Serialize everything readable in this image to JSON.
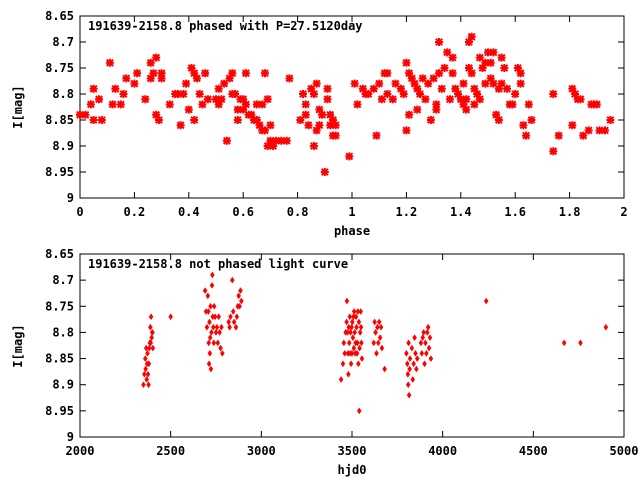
{
  "chart_data": [
    {
      "type": "scatter",
      "title": "191639-2158.8 phased with P=27.5120day",
      "xlabel": "phase",
      "ylabel": "I[mag]",
      "xlim": [
        0,
        2
      ],
      "ylim": [
        8.65,
        9.0
      ],
      "y_inverted": true,
      "xticks": [
        "0",
        "0.2",
        "0.4",
        "0.6",
        "0.8",
        "1",
        "1.2",
        "1.4",
        "1.6",
        "1.8",
        "2"
      ],
      "yticks": [
        "8.65",
        "8.7",
        "8.75",
        "8.8",
        "8.85",
        "8.9",
        "8.95",
        "9"
      ],
      "marker_color": "#ff0000",
      "marker": "star",
      "points": [
        [
          0.0,
          8.84
        ],
        [
          0.02,
          8.84
        ],
        [
          0.04,
          8.82
        ],
        [
          0.05,
          8.79
        ],
        [
          0.05,
          8.85
        ],
        [
          0.07,
          8.81
        ],
        [
          0.08,
          8.85
        ],
        [
          0.11,
          8.74
        ],
        [
          0.12,
          8.82
        ],
        [
          0.13,
          8.79
        ],
        [
          0.15,
          8.82
        ],
        [
          0.16,
          8.8
        ],
        [
          0.17,
          8.77
        ],
        [
          0.2,
          8.78
        ],
        [
          0.21,
          8.76
        ],
        [
          0.24,
          8.81
        ],
        [
          0.26,
          8.74
        ],
        [
          0.26,
          8.77
        ],
        [
          0.27,
          8.76
        ],
        [
          0.28,
          8.73
        ],
        [
          0.28,
          8.84
        ],
        [
          0.29,
          8.85
        ],
        [
          0.3,
          8.76
        ],
        [
          0.3,
          8.77
        ],
        [
          0.33,
          8.82
        ],
        [
          0.35,
          8.8
        ],
        [
          0.36,
          8.8
        ],
        [
          0.37,
          8.86
        ],
        [
          0.38,
          8.8
        ],
        [
          0.39,
          8.78
        ],
        [
          0.4,
          8.83
        ],
        [
          0.41,
          8.75
        ],
        [
          0.42,
          8.76
        ],
        [
          0.42,
          8.85
        ],
        [
          0.43,
          8.77
        ],
        [
          0.44,
          8.8
        ],
        [
          0.45,
          8.82
        ],
        [
          0.46,
          8.76
        ],
        [
          0.47,
          8.81
        ],
        [
          0.5,
          8.81
        ],
        [
          0.51,
          8.82
        ],
        [
          0.51,
          8.79
        ],
        [
          0.52,
          8.81
        ],
        [
          0.53,
          8.78
        ],
        [
          0.54,
          8.89
        ],
        [
          0.55,
          8.77
        ],
        [
          0.56,
          8.8
        ],
        [
          0.56,
          8.76
        ],
        [
          0.57,
          8.8
        ],
        [
          0.58,
          8.83
        ],
        [
          0.58,
          8.85
        ],
        [
          0.59,
          8.81
        ],
        [
          0.6,
          8.81
        ],
        [
          0.6,
          8.83
        ],
        [
          0.61,
          8.76
        ],
        [
          0.61,
          8.82
        ],
        [
          0.62,
          8.84
        ],
        [
          0.63,
          8.84
        ],
        [
          0.64,
          8.85
        ],
        [
          0.65,
          8.82
        ],
        [
          0.65,
          8.85
        ],
        [
          0.66,
          8.86
        ],
        [
          0.67,
          8.82
        ],
        [
          0.67,
          8.87
        ],
        [
          0.68,
          8.76
        ],
        [
          0.68,
          8.87
        ],
        [
          0.69,
          8.81
        ],
        [
          0.69,
          8.9
        ],
        [
          0.7,
          8.89
        ],
        [
          0.7,
          8.86
        ],
        [
          0.71,
          8.9
        ],
        [
          0.72,
          8.89
        ],
        [
          0.74,
          8.89
        ],
        [
          0.76,
          8.89
        ],
        [
          0.77,
          8.77
        ],
        [
          0.81,
          8.85
        ],
        [
          0.82,
          8.8
        ],
        [
          0.83,
          8.84
        ],
        [
          0.83,
          8.82
        ],
        [
          0.84,
          8.86
        ],
        [
          0.85,
          8.79
        ],
        [
          0.86,
          8.8
        ],
        [
          0.86,
          8.9
        ],
        [
          0.87,
          8.87
        ],
        [
          0.87,
          8.78
        ],
        [
          0.88,
          8.83
        ],
        [
          0.88,
          8.86
        ],
        [
          0.89,
          8.84
        ],
        [
          0.9,
          8.95
        ],
        [
          0.91,
          8.81
        ],
        [
          0.91,
          8.79
        ],
        [
          0.92,
          8.84
        ],
        [
          0.92,
          8.86
        ],
        [
          0.93,
          8.88
        ],
        [
          0.93,
          8.85
        ],
        [
          0.94,
          8.88
        ],
        [
          0.94,
          8.86
        ],
        [
          0.99,
          8.92
        ],
        [
          1.01,
          8.78
        ],
        [
          1.02,
          8.82
        ],
        [
          1.04,
          8.79
        ],
        [
          1.05,
          8.8
        ],
        [
          1.06,
          8.8
        ],
        [
          1.08,
          8.79
        ],
        [
          1.09,
          8.88
        ],
        [
          1.1,
          8.78
        ],
        [
          1.11,
          8.81
        ],
        [
          1.12,
          8.76
        ],
        [
          1.13,
          8.76
        ],
        [
          1.13,
          8.8
        ],
        [
          1.15,
          8.81
        ],
        [
          1.16,
          8.78
        ],
        [
          1.18,
          8.79
        ],
        [
          1.19,
          8.8
        ],
        [
          1.2,
          8.87
        ],
        [
          1.2,
          8.74
        ],
        [
          1.21,
          8.76
        ],
        [
          1.21,
          8.84
        ],
        [
          1.22,
          8.77
        ],
        [
          1.23,
          8.78
        ],
        [
          1.24,
          8.79
        ],
        [
          1.24,
          8.83
        ],
        [
          1.25,
          8.8
        ],
        [
          1.26,
          8.77
        ],
        [
          1.27,
          8.81
        ],
        [
          1.28,
          8.78
        ],
        [
          1.29,
          8.85
        ],
        [
          1.3,
          8.77
        ],
        [
          1.31,
          8.82
        ],
        [
          1.31,
          8.83
        ],
        [
          1.32,
          8.7
        ],
        [
          1.32,
          8.76
        ],
        [
          1.33,
          8.79
        ],
        [
          1.34,
          8.75
        ],
        [
          1.35,
          8.72
        ],
        [
          1.36,
          8.81
        ],
        [
          1.37,
          8.73
        ],
        [
          1.37,
          8.76
        ],
        [
          1.38,
          8.79
        ],
        [
          1.39,
          8.8
        ],
        [
          1.4,
          8.81
        ],
        [
          1.41,
          8.78
        ],
        [
          1.41,
          8.82
        ],
        [
          1.42,
          8.81
        ],
        [
          1.42,
          8.83
        ],
        [
          1.43,
          8.75
        ],
        [
          1.43,
          8.7
        ],
        [
          1.44,
          8.76
        ],
        [
          1.44,
          8.69
        ],
        [
          1.45,
          8.82
        ],
        [
          1.45,
          8.79
        ],
        [
          1.46,
          8.8
        ],
        [
          1.47,
          8.73
        ],
        [
          1.47,
          8.81
        ],
        [
          1.48,
          8.75
        ],
        [
          1.49,
          8.74
        ],
        [
          1.49,
          8.78
        ],
        [
          1.5,
          8.72
        ],
        [
          1.51,
          8.77
        ],
        [
          1.51,
          8.74
        ],
        [
          1.52,
          8.72
        ],
        [
          1.52,
          8.78
        ],
        [
          1.53,
          8.84
        ],
        [
          1.54,
          8.85
        ],
        [
          1.54,
          8.79
        ],
        [
          1.55,
          8.78
        ],
        [
          1.55,
          8.73
        ],
        [
          1.56,
          8.75
        ],
        [
          1.57,
          8.79
        ],
        [
          1.58,
          8.82
        ],
        [
          1.59,
          8.82
        ],
        [
          1.6,
          8.8
        ],
        [
          1.61,
          8.75
        ],
        [
          1.62,
          8.76
        ],
        [
          1.62,
          8.78
        ],
        [
          1.63,
          8.86
        ],
        [
          1.64,
          8.88
        ],
        [
          1.65,
          8.82
        ],
        [
          1.66,
          8.85
        ],
        [
          1.74,
          8.91
        ],
        [
          1.74,
          8.8
        ],
        [
          1.76,
          8.88
        ],
        [
          1.81,
          8.86
        ],
        [
          1.81,
          8.79
        ],
        [
          1.82,
          8.8
        ],
        [
          1.83,
          8.81
        ],
        [
          1.84,
          8.81
        ],
        [
          1.85,
          8.88
        ],
        [
          1.87,
          8.87
        ],
        [
          1.88,
          8.82
        ],
        [
          1.89,
          8.82
        ],
        [
          1.9,
          8.82
        ],
        [
          1.91,
          8.87
        ],
        [
          1.93,
          8.87
        ],
        [
          1.95,
          8.85
        ]
      ]
    },
    {
      "type": "scatter",
      "title": "191639-2158.8 not phased light curve",
      "xlabel": "hjd0",
      "ylabel": "I[mag]",
      "xlim": [
        2000,
        5000
      ],
      "ylim": [
        8.65,
        9.0
      ],
      "y_inverted": true,
      "xticks": [
        "2000",
        "2500",
        "3000",
        "3500",
        "4000",
        "4500",
        "5000"
      ],
      "yticks": [
        "8.65",
        "8.7",
        "8.75",
        "8.8",
        "8.85",
        "8.9",
        "8.95",
        "9"
      ],
      "marker_color": "#ff0000",
      "marker": "diamond",
      "points": [
        [
          2350,
          8.9
        ],
        [
          2355,
          8.88
        ],
        [
          2360,
          8.85
        ],
        [
          2362,
          8.87
        ],
        [
          2365,
          8.83
        ],
        [
          2368,
          8.89
        ],
        [
          2370,
          8.86
        ],
        [
          2372,
          8.84
        ],
        [
          2375,
          8.88
        ],
        [
          2378,
          8.9
        ],
        [
          2380,
          8.86
        ],
        [
          2382,
          8.83
        ],
        [
          2385,
          8.82
        ],
        [
          2388,
          8.79
        ],
        [
          2390,
          8.82
        ],
        [
          2392,
          8.77
        ],
        [
          2395,
          8.81
        ],
        [
          2398,
          8.8
        ],
        [
          2400,
          8.8
        ],
        [
          2402,
          8.83
        ],
        [
          2500,
          8.77
        ],
        [
          2690,
          8.72
        ],
        [
          2695,
          8.76
        ],
        [
          2700,
          8.79
        ],
        [
          2705,
          8.73
        ],
        [
          2708,
          8.76
        ],
        [
          2710,
          8.82
        ],
        [
          2712,
          8.86
        ],
        [
          2714,
          8.78
        ],
        [
          2716,
          8.84
        ],
        [
          2718,
          8.81
        ],
        [
          2720,
          8.75
        ],
        [
          2722,
          8.87
        ],
        [
          2725,
          8.8
        ],
        [
          2728,
          8.71
        ],
        [
          2730,
          8.69
        ],
        [
          2732,
          8.77
        ],
        [
          2735,
          8.79
        ],
        [
          2738,
          8.82
        ],
        [
          2740,
          8.75
        ],
        [
          2745,
          8.77
        ],
        [
          2750,
          8.8
        ],
        [
          2755,
          8.79
        ],
        [
          2760,
          8.82
        ],
        [
          2765,
          8.77
        ],
        [
          2770,
          8.8
        ],
        [
          2775,
          8.83
        ],
        [
          2780,
          8.79
        ],
        [
          2785,
          8.84
        ],
        [
          2820,
          8.78
        ],
        [
          2825,
          8.79
        ],
        [
          2830,
          8.77
        ],
        [
          2840,
          8.7
        ],
        [
          2845,
          8.76
        ],
        [
          2850,
          8.78
        ],
        [
          2860,
          8.79
        ],
        [
          2865,
          8.77
        ],
        [
          2870,
          8.75
        ],
        [
          2875,
          8.73
        ],
        [
          2880,
          8.75
        ],
        [
          2885,
          8.72
        ],
        [
          2890,
          8.74
        ],
        [
          3440,
          8.89
        ],
        [
          3450,
          8.86
        ],
        [
          3455,
          8.82
        ],
        [
          3460,
          8.84
        ],
        [
          3465,
          8.8
        ],
        [
          3470,
          8.78
        ],
        [
          3472,
          8.74
        ],
        [
          3475,
          8.8
        ],
        [
          3478,
          8.84
        ],
        [
          3480,
          8.88
        ],
        [
          3482,
          8.79
        ],
        [
          3485,
          8.82
        ],
        [
          3488,
          8.77
        ],
        [
          3490,
          8.84
        ],
        [
          3492,
          8.8
        ],
        [
          3495,
          8.86
        ],
        [
          3498,
          8.79
        ],
        [
          3500,
          8.84
        ],
        [
          3502,
          8.78
        ],
        [
          3505,
          8.81
        ],
        [
          3508,
          8.77
        ],
        [
          3510,
          8.83
        ],
        [
          3512,
          8.76
        ],
        [
          3515,
          8.8
        ],
        [
          3518,
          8.84
        ],
        [
          3520,
          8.82
        ],
        [
          3522,
          8.77
        ],
        [
          3525,
          8.79
        ],
        [
          3528,
          8.84
        ],
        [
          3530,
          8.82
        ],
        [
          3532,
          8.76
        ],
        [
          3535,
          8.86
        ],
        [
          3538,
          8.78
        ],
        [
          3540,
          8.95
        ],
        [
          3542,
          8.83
        ],
        [
          3545,
          8.8
        ],
        [
          3548,
          8.76
        ],
        [
          3550,
          8.79
        ],
        [
          3552,
          8.82
        ],
        [
          3555,
          8.85
        ],
        [
          3620,
          8.82
        ],
        [
          3625,
          8.78
        ],
        [
          3630,
          8.8
        ],
        [
          3635,
          8.84
        ],
        [
          3640,
          8.79
        ],
        [
          3645,
          8.82
        ],
        [
          3650,
          8.78
        ],
        [
          3655,
          8.81
        ],
        [
          3660,
          8.79
        ],
        [
          3665,
          8.83
        ],
        [
          3680,
          8.87
        ],
        [
          3800,
          8.84
        ],
        [
          3805,
          8.86
        ],
        [
          3808,
          8.88
        ],
        [
          3810,
          8.9
        ],
        [
          3812,
          8.82
        ],
        [
          3815,
          8.92
        ],
        [
          3818,
          8.87
        ],
        [
          3820,
          8.85
        ],
        [
          3830,
          8.83
        ],
        [
          3835,
          8.89
        ],
        [
          3840,
          8.86
        ],
        [
          3845,
          8.81
        ],
        [
          3850,
          8.84
        ],
        [
          3855,
          8.87
        ],
        [
          3860,
          8.85
        ],
        [
          3880,
          8.82
        ],
        [
          3885,
          8.84
        ],
        [
          3890,
          8.81
        ],
        [
          3895,
          8.8
        ],
        [
          3900,
          8.86
        ],
        [
          3905,
          8.82
        ],
        [
          3910,
          8.84
        ],
        [
          3915,
          8.8
        ],
        [
          3920,
          8.79
        ],
        [
          3925,
          8.83
        ],
        [
          3930,
          8.81
        ],
        [
          3935,
          8.85
        ],
        [
          4240,
          8.74
        ],
        [
          4670,
          8.82
        ],
        [
          4760,
          8.82
        ],
        [
          4900,
          8.79
        ]
      ]
    }
  ]
}
